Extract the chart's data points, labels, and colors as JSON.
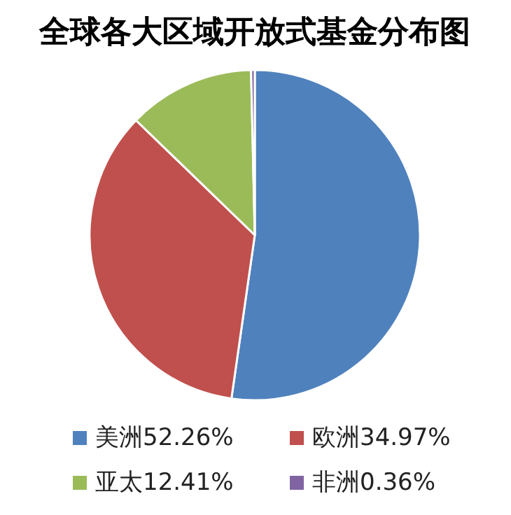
{
  "chart_data": {
    "type": "pie",
    "title": "全球各大区域开放式基金分布图",
    "categories": [
      "美洲",
      "欧洲",
      "亚太",
      "非洲"
    ],
    "values": [
      52.26,
      34.97,
      12.41,
      0.36
    ],
    "value_labels": [
      "52.26%",
      "34.97%",
      "12.41%",
      "0.36%"
    ],
    "colors": [
      "#4f81bd",
      "#c0504d",
      "#9bbb59",
      "#8064a2"
    ],
    "legend": "bottom"
  }
}
